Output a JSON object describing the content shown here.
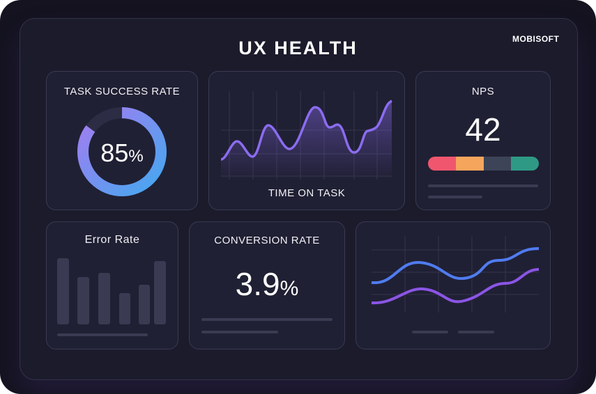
{
  "header": {
    "title": "UX HEALTH",
    "logo": "MOBISOFT"
  },
  "task_success": {
    "label": "TASK SUCCESS RATE",
    "value": "85",
    "unit": "%",
    "fraction": 0.85
  },
  "time_on_task": {
    "label": "TIME ON TASK"
  },
  "nps": {
    "label": "NPS",
    "value": "42",
    "segments": [
      "#f0566e",
      "#f6a55c",
      "#3d4458",
      "#2e9a86"
    ]
  },
  "error_rate": {
    "label": "Error Rate"
  },
  "conversion": {
    "label": "CONVERSION RATE",
    "value": "3.9",
    "unit": "%"
  },
  "colors": {
    "accent": "#8b6cf0",
    "blue": "#4f7cf0"
  }
}
